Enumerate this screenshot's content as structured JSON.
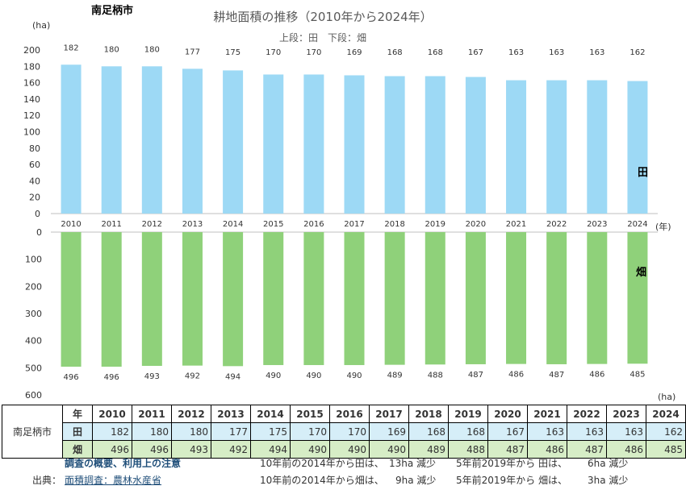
{
  "header": {
    "region": "南足柄市",
    "title": "耕地面積の推移（2010年から2024年）",
    "subtitle": "上段：田　下段：畑"
  },
  "chart_data": [
    {
      "type": "bar",
      "name": "田",
      "categories": [
        "2010",
        "2011",
        "2012",
        "2013",
        "2014",
        "2015",
        "2016",
        "2017",
        "2018",
        "2019",
        "2020",
        "2021",
        "2022",
        "2023",
        "2024"
      ],
      "values": [
        182,
        180,
        180,
        177,
        175,
        170,
        170,
        169,
        168,
        168,
        167,
        163,
        163,
        163,
        162
      ],
      "ylabel": "(ha)",
      "xunit": "(年)",
      "ylim": [
        0,
        200
      ],
      "yticks": [
        "0",
        "20",
        "40",
        "60",
        "80",
        "100",
        "120",
        "140",
        "160",
        "180",
        "200"
      ],
      "color": "#9dd9f5",
      "series_label": "田"
    },
    {
      "type": "bar",
      "name": "畑",
      "categories": [
        "2010",
        "2011",
        "2012",
        "2013",
        "2014",
        "2015",
        "2016",
        "2017",
        "2018",
        "2019",
        "2020",
        "2021",
        "2022",
        "2023",
        "2024"
      ],
      "values": [
        496,
        496,
        493,
        492,
        494,
        490,
        490,
        490,
        489,
        488,
        487,
        486,
        487,
        486,
        485
      ],
      "ylabel": "(ha)",
      "ylim": [
        0,
        600
      ],
      "inverted": true,
      "yticks": [
        "0",
        "100",
        "200",
        "300",
        "400",
        "500",
        "600"
      ],
      "color": "#8fd17a",
      "series_label": "畑"
    }
  ],
  "table": {
    "year_header": "年",
    "region_label": "南足柄市",
    "years": [
      "2010",
      "2011",
      "2012",
      "2013",
      "2014",
      "2015",
      "2016",
      "2017",
      "2018",
      "2019",
      "2020",
      "2021",
      "2022",
      "2023",
      "2024"
    ],
    "rows": [
      {
        "label": "田",
        "values": [
          "182",
          "180",
          "180",
          "177",
          "175",
          "170",
          "170",
          "169",
          "168",
          "168",
          "167",
          "163",
          "163",
          "163",
          "162"
        ]
      },
      {
        "label": "畑",
        "values": [
          "496",
          "496",
          "493",
          "492",
          "494",
          "490",
          "490",
          "490",
          "489",
          "488",
          "487",
          "486",
          "487",
          "486",
          "485"
        ]
      }
    ]
  },
  "footer": {
    "survey_link": "調査の概要、利用上の注意",
    "source_label": "出典：",
    "source_link": "面積調査：農林水産省",
    "note_ta_10": "10年前の2014年から田は、",
    "note_ta_10_val": "13ha 減少",
    "note_ta_5": "5年前2019年から 田は、",
    "note_ta_5_val": "6ha 減少",
    "note_ha_10": "10年前の2014年から畑は、",
    "note_ha_10_val": "9ha 減少",
    "note_ha_5": "5年前2019年から 畑は、",
    "note_ha_5_val": "3ha 減少"
  },
  "colors": {
    "ta": "#9dd9f5",
    "ha": "#8fd17a",
    "axis": "#bfbfbf",
    "text": "#333333"
  }
}
